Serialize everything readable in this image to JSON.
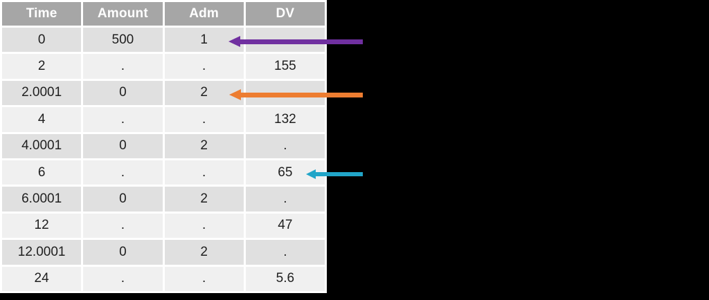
{
  "chart_data": {
    "type": "table",
    "columns": [
      "Time",
      "Amount",
      "Adm",
      "DV"
    ],
    "rows": [
      [
        "0",
        "500",
        "1",
        "."
      ],
      [
        "2",
        ".",
        ".",
        "155"
      ],
      [
        "2.0001",
        "0",
        "2",
        "."
      ],
      [
        "4",
        ".",
        ".",
        "132"
      ],
      [
        "4.0001",
        "0",
        "2",
        "."
      ],
      [
        "6",
        ".",
        ".",
        "65"
      ],
      [
        "6.0001",
        "0",
        "2",
        "."
      ],
      [
        "12",
        ".",
        ".",
        "47"
      ],
      [
        "12.0001",
        "0",
        "2",
        "."
      ],
      [
        "24",
        ".",
        ".",
        "5.6"
      ]
    ],
    "title": "",
    "layout_hints": {
      "header_bg": "#a6a6a6",
      "header_text_color": "#ffffff",
      "row_bg_odd": "#e0e0e0",
      "row_bg_even": "#f0f0f0",
      "cell_text_color": "#1f1f1f",
      "slide_background": "#000000"
    }
  },
  "annotations": {
    "arrows": [
      {
        "name": "purple-arrow",
        "color": "#7030a0",
        "points_to": "Adm value 1 in row Time=0"
      },
      {
        "name": "orange-arrow",
        "color": "#ed7d31",
        "points_to": "Adm value 2 in row Time=2.0001"
      },
      {
        "name": "cyan-arrow",
        "color": "#21a5c8",
        "points_to": "DV value 65 in row Time=6"
      }
    ]
  }
}
